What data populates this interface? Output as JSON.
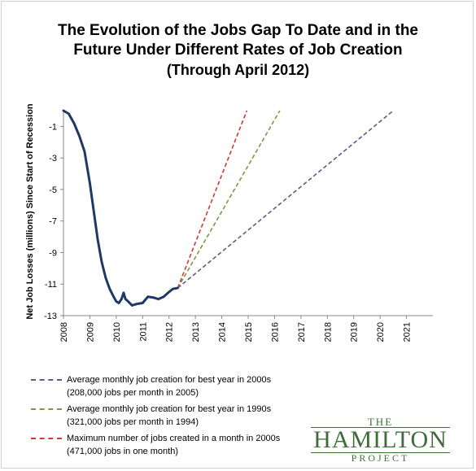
{
  "chart_data": {
    "type": "line",
    "title": [
      "The Evolution of the Jobs Gap To Date and in the",
      "Future Under Different Rates of Job Creation"
    ],
    "subtitle": "(Through April 2012)",
    "xlabel": "",
    "ylabel": "Net Job Losses (millions) Since Start of Recession",
    "xlim": [
      2008,
      2022
    ],
    "ylim": [
      -13,
      0
    ],
    "grid": false,
    "y_ticks": [
      -1,
      -3,
      -5,
      -7,
      -9,
      -11,
      -13
    ],
    "x_ticks": [
      "2008",
      "2009",
      "2010",
      "2011",
      "2012",
      "2013",
      "2014",
      "2015",
      "2016",
      "2017",
      "2018",
      "2019",
      "2020",
      "2021"
    ],
    "actual": {
      "x": [
        2008.0,
        2008.2,
        2008.4,
        2008.6,
        2008.8,
        2009.0,
        2009.15,
        2009.3,
        2009.45,
        2009.6,
        2009.75,
        2009.9,
        2010.0,
        2010.1,
        2010.2,
        2010.28,
        2010.35,
        2010.45,
        2010.6,
        2010.8,
        2011.0,
        2011.2,
        2011.4,
        2011.6,
        2011.8,
        2012.0,
        2012.15,
        2012.33
      ],
      "y": [
        0.0,
        -0.2,
        -0.8,
        -1.6,
        -2.6,
        -4.6,
        -6.4,
        -8.2,
        -9.6,
        -10.6,
        -11.3,
        -11.8,
        -12.1,
        -12.2,
        -11.95,
        -11.55,
        -11.95,
        -12.1,
        -12.35,
        -12.25,
        -12.2,
        -11.8,
        -11.85,
        -11.95,
        -11.8,
        -11.5,
        -11.3,
        -11.25
      ]
    },
    "series": [
      {
        "name": "Average monthly job creation for best year in 2000s",
        "note": "(208,000 jobs per month in 2005)",
        "color": "#5c5c8c",
        "x": [
          2012.33,
          2020.5
        ],
        "y": [
          -11.25,
          0
        ]
      },
      {
        "name": "Average monthly job creation for best year in 1990s",
        "note": "(321,000 jobs per month in 1994)",
        "color": "#7a9a45",
        "x": [
          2012.33,
          2016.2
        ],
        "y": [
          -11.25,
          0
        ]
      },
      {
        "name": "Maximum number of jobs created in a month in 2000s",
        "note": "(471,000 jobs in one month)",
        "color": "#cc3b3b",
        "x": [
          2012.33,
          2014.95
        ],
        "y": [
          -11.25,
          0
        ]
      }
    ],
    "colors": {
      "actual": "#1f3864",
      "axis": "#888888"
    }
  },
  "logo": {
    "the": "THE",
    "name": "HAMILTON",
    "project": "PROJECT"
  }
}
